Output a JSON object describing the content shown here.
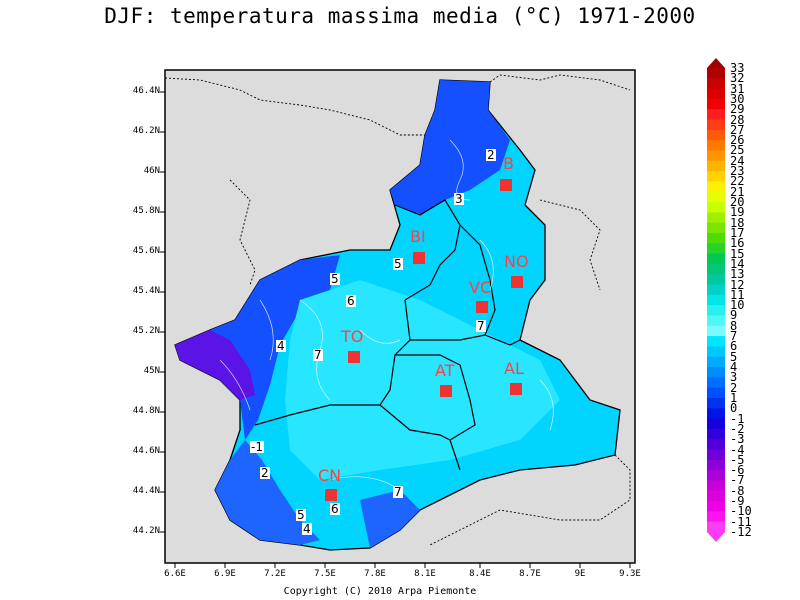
{
  "title": "DJF: temperatura massima media (°C) 1971-2000",
  "copyright": "Copyright (C) 2010 Arpa Piemonte",
  "axes": {
    "lat_ticks": [
      "46.4N",
      "46.2N",
      "46N",
      "45.8N",
      "45.6N",
      "45.4N",
      "45.2N",
      "45N",
      "44.8N",
      "44.6N",
      "44.4N",
      "44.2N"
    ],
    "lon_ticks": [
      "6.6E",
      "6.9E",
      "7.2E",
      "7.5E",
      "7.8E",
      "8.1E",
      "8.4E",
      "8.7E",
      "9E",
      "9.3E"
    ]
  },
  "colorbar": {
    "labels": [
      "33",
      "32",
      "31",
      "30",
      "29",
      "28",
      "27",
      "26",
      "25",
      "24",
      "23",
      "22",
      "21",
      "20",
      "19",
      "18",
      "17",
      "16",
      "15",
      "14",
      "13",
      "12",
      "11",
      "10",
      "9",
      "8",
      "7",
      "6",
      "5",
      "4",
      "3",
      "2",
      "1",
      "0",
      "-1",
      "-2",
      "-3",
      "-4",
      "-5",
      "-6",
      "-7",
      "-8",
      "-9",
      "-10",
      "-11",
      "-12"
    ],
    "colors": [
      "#b00000",
      "#c80000",
      "#dc0000",
      "#f00000",
      "#ff1e1e",
      "#ff3c14",
      "#ff5a0a",
      "#ff7800",
      "#ff9600",
      "#ffb400",
      "#ffd200",
      "#fff000",
      "#e6ff00",
      "#c8ff00",
      "#a0f000",
      "#78e600",
      "#50dc00",
      "#28d228",
      "#00c850",
      "#00c878",
      "#00c8a0",
      "#00d2c8",
      "#00e6e6",
      "#28f0f0",
      "#50f5f5",
      "#78faff",
      "#00e6ff",
      "#00c8ff",
      "#00aaff",
      "#008cff",
      "#006eff",
      "#0050ff",
      "#0032f0",
      "#0014e6",
      "#1400dc",
      "#3200dc",
      "#5000dc",
      "#6e00dc",
      "#8c00dc",
      "#aa00dc",
      "#c800dc",
      "#dc00dc",
      "#f000e6",
      "#ff14f0",
      "#ff3cf5"
    ]
  },
  "cities": [
    {
      "code": "TO"
    },
    {
      "code": "CN"
    },
    {
      "code": "AT"
    },
    {
      "code": "AL"
    },
    {
      "code": "VC"
    },
    {
      "code": "NO"
    },
    {
      "code": "BI"
    },
    {
      "code": "B"
    }
  ],
  "isolines": [
    "2",
    "3",
    "5",
    "6",
    "7",
    "4",
    "7",
    "-1",
    "2",
    "5",
    "4",
    "5",
    "6",
    "7"
  ]
}
